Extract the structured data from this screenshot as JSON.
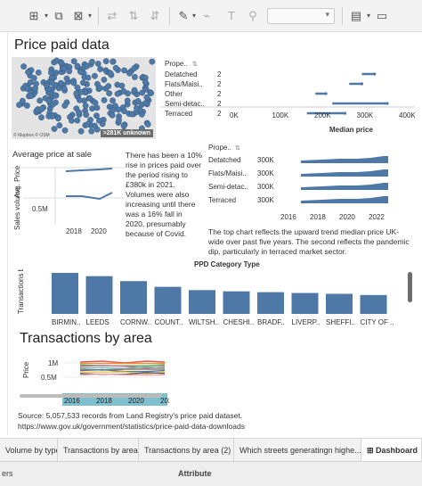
{
  "toolbar": {
    "icons": [
      "add-sheet-icon",
      "duplicate-icon",
      "clear-icon",
      "swap-icon",
      "sort-asc-icon",
      "sort-desc-icon",
      "highlight-icon",
      "attach-icon",
      "text-icon",
      "pin-icon",
      "show-me-icon",
      "present-icon"
    ]
  },
  "map": {
    "title": "Price paid data",
    "attribution": "© Mapbox © OSM",
    "unknown_badge": ">281K unknown"
  },
  "median_chart": {
    "header": "Prope..",
    "rows": [
      "Detatched",
      "Flats/Maisi..",
      "Other",
      "Semi-detac..",
      "Terraced"
    ],
    "row_marks": [
      "2",
      "2",
      "2",
      "2",
      "2"
    ],
    "ticks": [
      "0K",
      "100K",
      "200K",
      "300K",
      "400K"
    ],
    "xlabel": "Median price",
    "ranges": [
      [
        300,
        330
      ],
      [
        270,
        300
      ],
      [
        190,
        215
      ],
      [
        230,
        360
      ],
      [
        170,
        260
      ]
    ]
  },
  "avg_chart": {
    "title": "Average price at sale",
    "row_labels": [
      "Avg. Price",
      "Sales volume"
    ],
    "tick_0_5m": "0.5M",
    "years": [
      "2018",
      "2020"
    ]
  },
  "note1": "There has been a 10% rise in prices paid over the period rising to £380k in 2021. Volumes were also increasing until there was a 16% fall in 2020, presumably because of Covid.",
  "trend_chart": {
    "header": "Prope..",
    "rows": [
      "Detatched",
      "Flats/Maisi..",
      "Semi-detac..",
      "Terraced"
    ],
    "values": [
      "300K",
      "300K",
      "300K",
      "300K"
    ],
    "years": [
      "2016",
      "2018",
      "2020",
      "2022"
    ]
  },
  "note2": "The top chart reflects the upward trend median price UK-wide over past five years. The second reflects the pandemic dip, particularly in terraced market sector.",
  "category_chart": {
    "title": "PPD Category Type",
    "ylabel": "Transactions by region...",
    "categories": [
      "BIRMIN..",
      "LEEDS",
      "CORNW..",
      "COUNT..",
      "WILTSH..",
      "CHESHI..",
      "BRADF..",
      "LIVERP..",
      "SHEFFI..",
      "CITY OF .."
    ],
    "values": [
      100,
      92,
      80,
      66,
      58,
      55,
      53,
      51,
      49,
      46
    ]
  },
  "transactions": {
    "title": "Transactions by area",
    "ylabel": "Price",
    "ticks": [
      "1M",
      "0.5M"
    ],
    "years": [
      "2016",
      "2018",
      "2020",
      "2022"
    ]
  },
  "source": "Source: 5,057,533 records from Land Registry's price paid dataset.",
  "source_url": "https://www.gov.uk/government/statistics/price-paid-data-downloads",
  "tabs": [
    "Volume by type",
    "Transactions by area",
    "Transactions by area (2)",
    "Which streets generatingn highe...",
    "Dashboard"
  ],
  "footer": {
    "left": "ers",
    "center": "Attribute"
  },
  "colors": {
    "accent": "#4e79a7",
    "teal": "#7fbfcf"
  }
}
